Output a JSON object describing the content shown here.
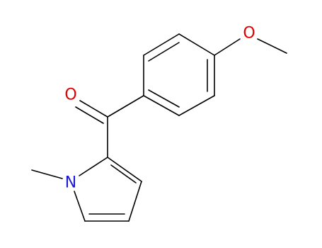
{
  "atoms": [
    {
      "label": "O"
    },
    {
      "label": "O"
    },
    {
      "label": "N"
    }
  ]
}
